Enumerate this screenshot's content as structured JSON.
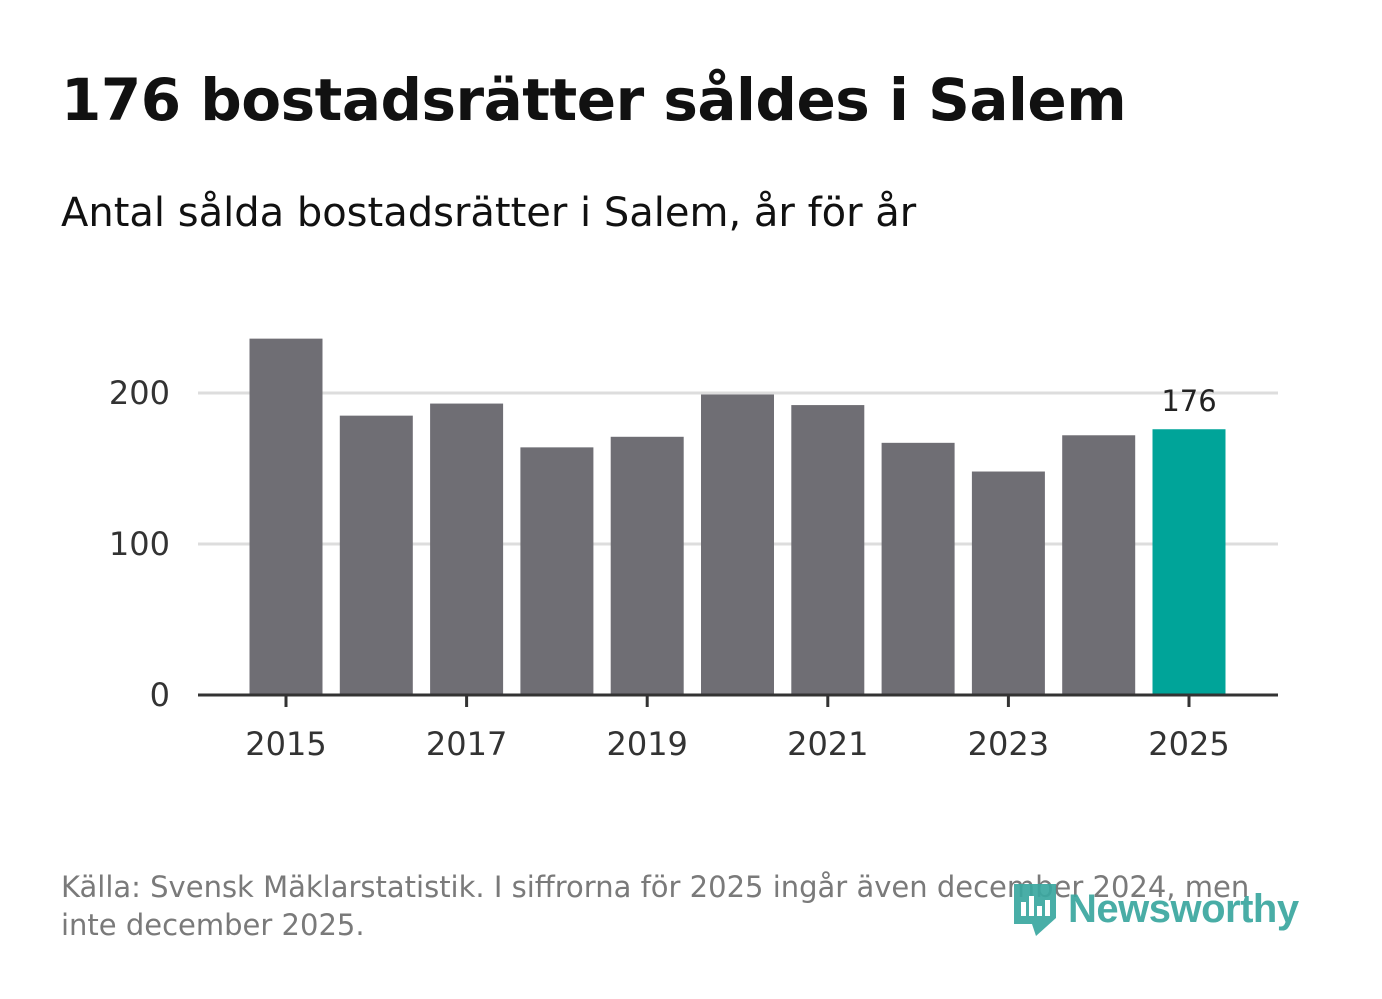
{
  "header": {
    "title": "176 bostadsrätter såldes i Salem",
    "subtitle": "Antal sålda bostadsrätter i Salem, år för år"
  },
  "chart_data": {
    "type": "bar",
    "title": "176 bostadsrätter såldes i Salem",
    "subtitle": "Antal sålda bostadsrätter i Salem, år för år",
    "xlabel": "",
    "ylabel": "",
    "categories": [
      "2015",
      "2016",
      "2017",
      "2018",
      "2019",
      "2020",
      "2021",
      "2022",
      "2023",
      "2024",
      "2025"
    ],
    "x_tick_labels": [
      "2015",
      "2017",
      "2019",
      "2021",
      "2023",
      "2025"
    ],
    "values": [
      236,
      185,
      193,
      164,
      171,
      199,
      192,
      167,
      148,
      172,
      176
    ],
    "y_ticks": [
      0,
      100,
      200
    ],
    "ylim": [
      0,
      240
    ],
    "grid": true,
    "colors": {
      "bar": "#6f6e74",
      "highlight": "#00a499",
      "gridline": "#dddddd",
      "axis": "#333333"
    },
    "highlight_index": 10,
    "annotations": [
      {
        "category": "2025",
        "text": "176"
      }
    ]
  },
  "footer": {
    "source": "Källa: Svensk Mäklarstatistik. I siffrorna för 2025 ingår även december 2024, men inte december 2025.",
    "brand": "Newsworthy",
    "brand_icon": "newsworthy-logo-icon",
    "brand_color": "#3aa79f"
  }
}
